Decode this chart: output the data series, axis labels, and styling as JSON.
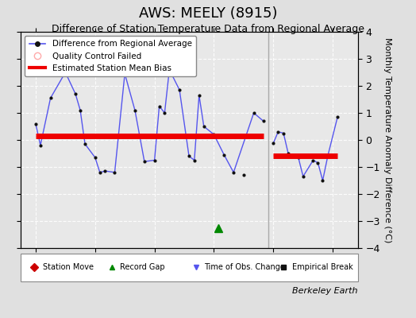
{
  "title": "AWS: MEELY (8915)",
  "subtitle": "Difference of Station Temperature Data from Regional Average",
  "ylabel": "Monthly Temperature Anomaly Difference (°C)",
  "background_color": "#e0e0e0",
  "plot_bg_color": "#e8e8e8",
  "ylim": [
    -4,
    4
  ],
  "xlim": [
    1980.75,
    1986.42
  ],
  "yticks": [
    -4,
    -3,
    -2,
    -1,
    0,
    1,
    2,
    3,
    4
  ],
  "xticks": [
    1981,
    1982,
    1983,
    1984,
    1985,
    1986
  ],
  "break_x": 1984.92,
  "record_gap_x": 1984.08,
  "record_gap_y": -3.25,
  "seg1_x": [
    1981.0,
    1981.08,
    1981.25,
    1981.5,
    1981.67,
    1981.75,
    1981.83,
    1982.0,
    1982.08,
    1982.17,
    1982.33,
    1982.5,
    1982.67,
    1982.83,
    1983.0,
    1983.08,
    1983.17,
    1983.25,
    1983.42,
    1983.58,
    1983.67,
    1983.75,
    1983.83,
    1984.0,
    1984.17,
    1984.33,
    1984.67,
    1984.83
  ],
  "seg1_y": [
    0.6,
    -0.2,
    1.55,
    2.5,
    1.7,
    1.1,
    -0.15,
    -0.65,
    -1.2,
    -1.15,
    -1.2,
    2.45,
    1.1,
    -0.8,
    -0.75,
    1.25,
    1.0,
    2.6,
    1.85,
    -0.6,
    -0.75,
    1.65,
    0.5,
    0.2,
    -0.55,
    -1.2,
    1.0,
    0.7
  ],
  "seg1_bias_y": 0.15,
  "seg2_x": [
    1985.0,
    1985.08,
    1985.17,
    1985.25,
    1985.42,
    1985.5,
    1985.67,
    1985.75,
    1985.83,
    1985.92,
    1986.08
  ],
  "seg2_y": [
    -0.12,
    0.3,
    0.25,
    -0.5,
    -0.65,
    -1.35,
    -0.75,
    -0.85,
    -1.5,
    -0.55,
    0.85
  ],
  "seg2_bias_y": -0.6,
  "isolated_x": 1984.5,
  "isolated_y": -1.3,
  "line_color": "#5555ee",
  "dot_color": "#111111",
  "bias_color": "#ee0000",
  "break_color": "#aaaaaa",
  "legend_bg": "#ffffff",
  "berkeley_earth": "Berkeley Earth",
  "title_fontsize": 13,
  "subtitle_fontsize": 9,
  "tick_fontsize": 9,
  "ylabel_fontsize": 8
}
